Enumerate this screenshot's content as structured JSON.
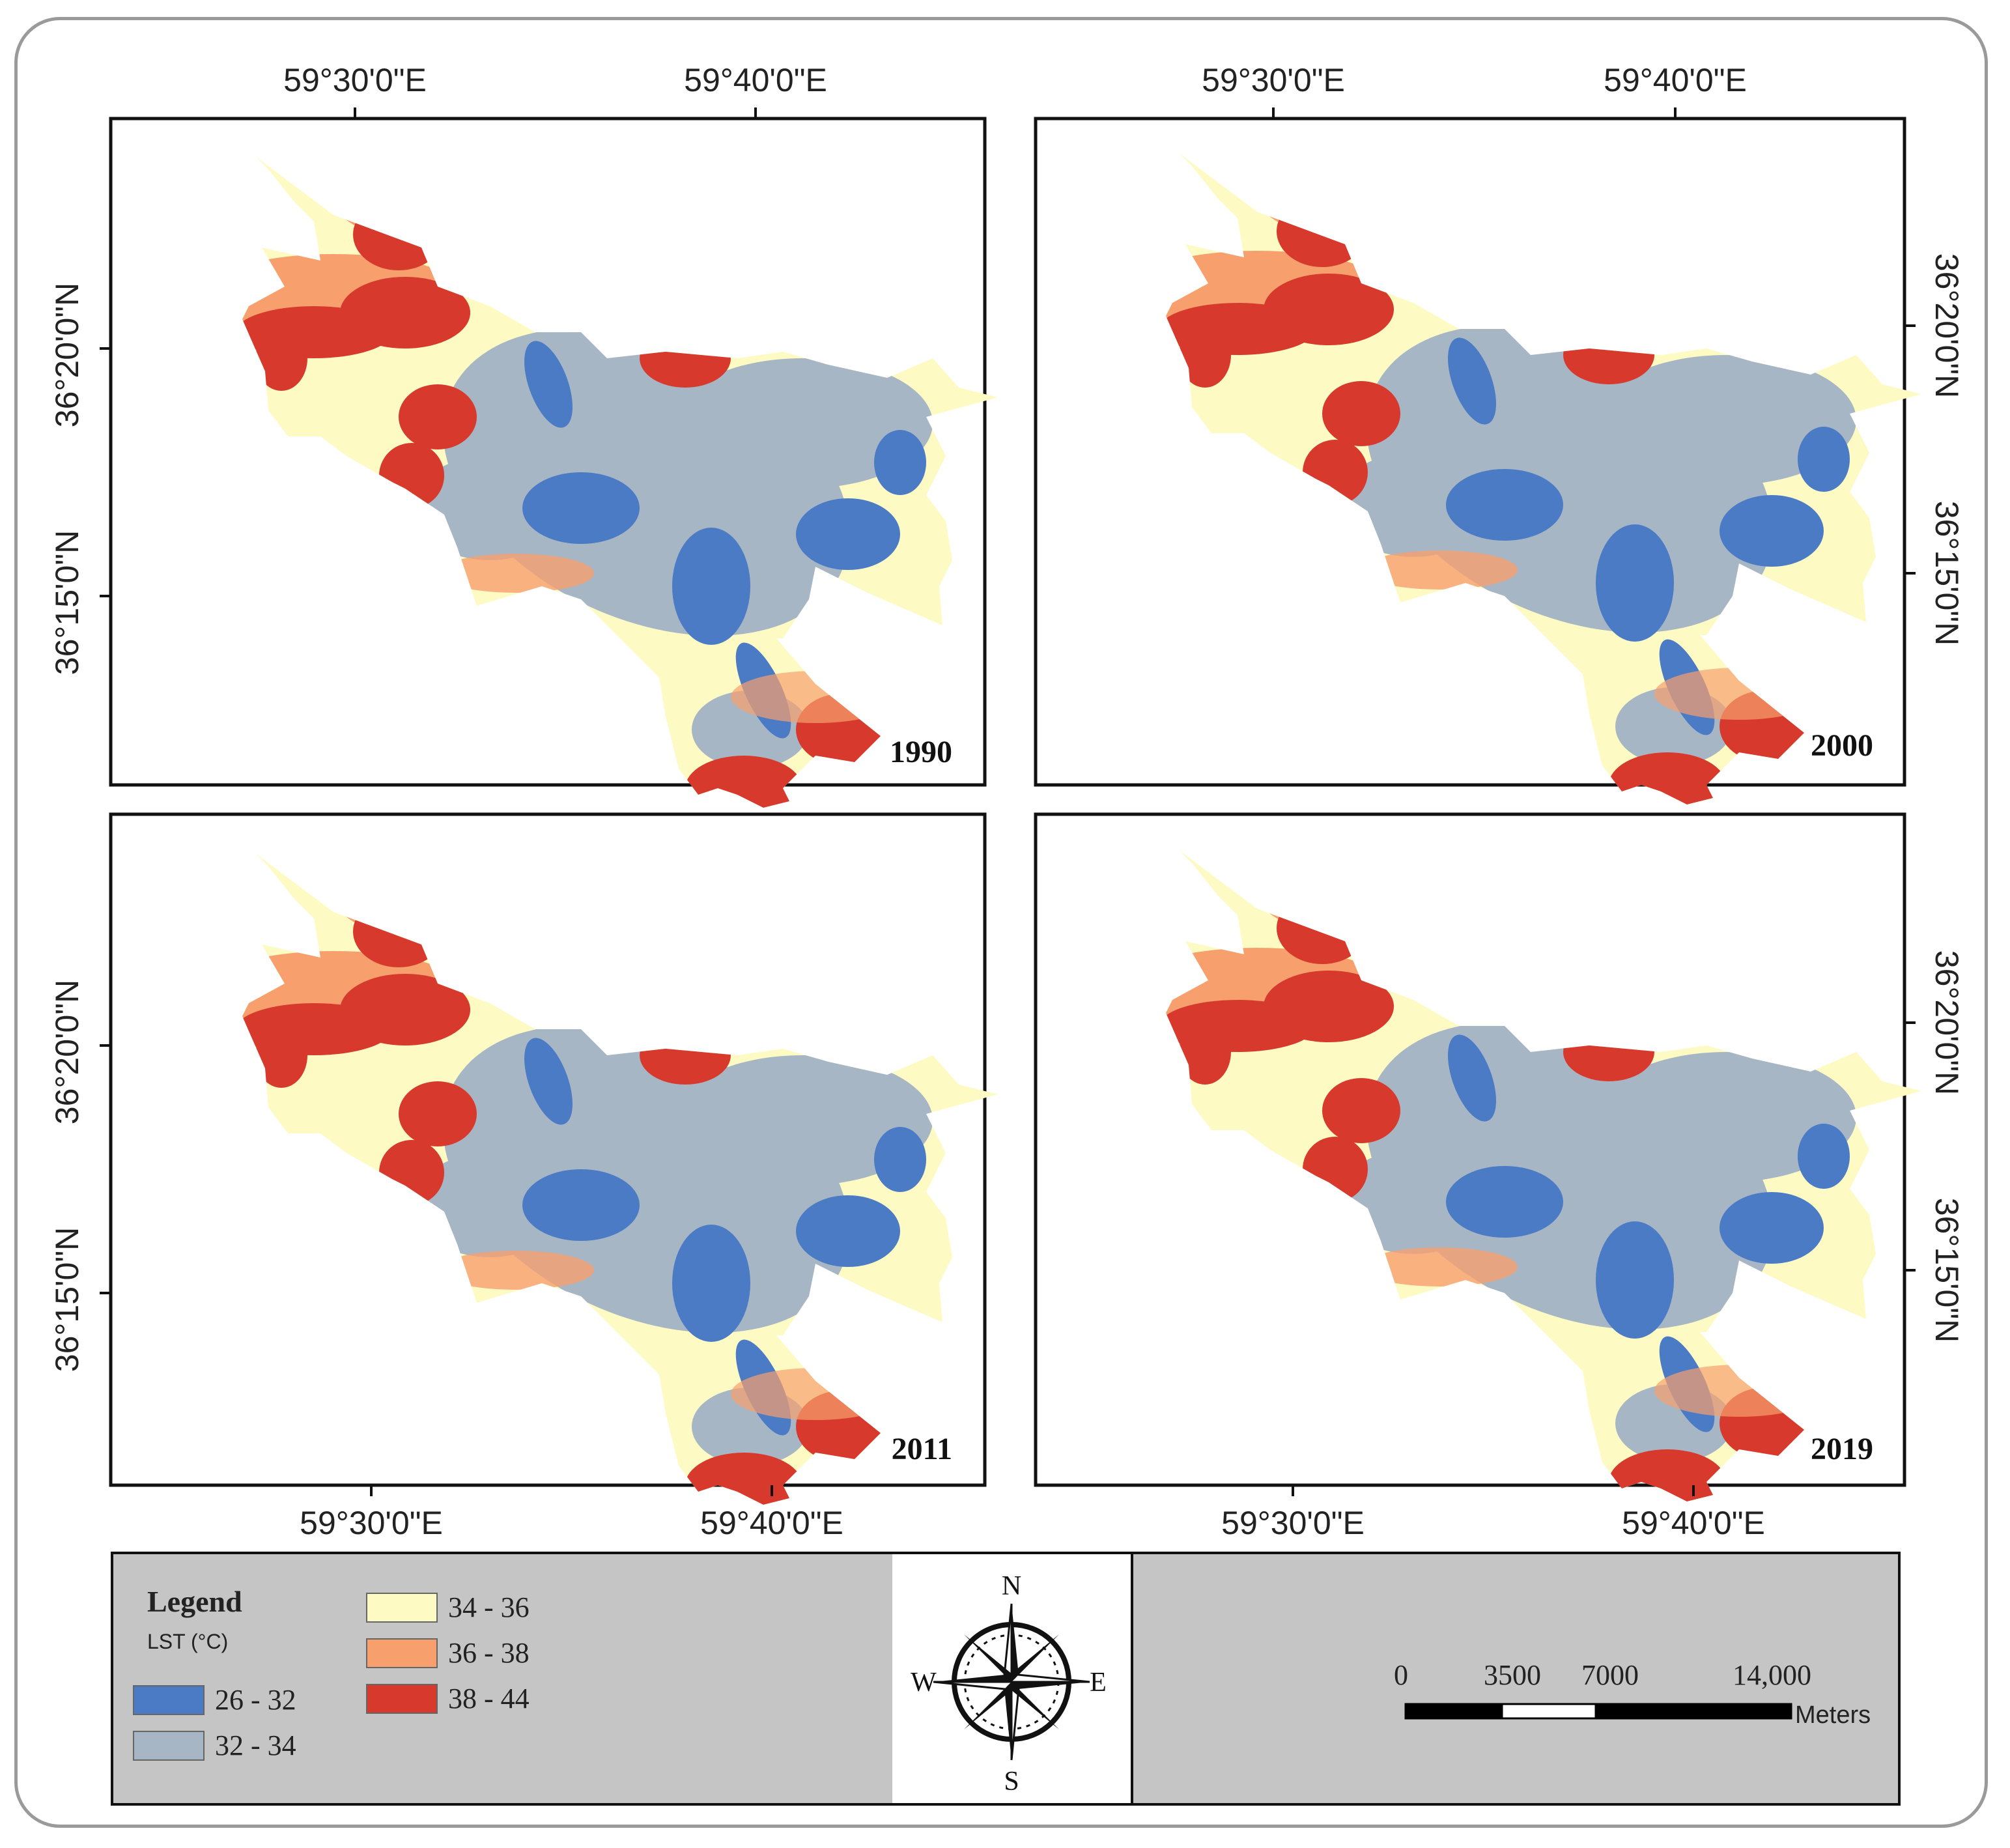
{
  "maps": [
    {
      "year": "1990",
      "top_lon": [
        "59°30'0\"E",
        "59°40'0\"E"
      ],
      "left_lat": [
        "36°20'0\"N",
        "36°15'0\"N"
      ]
    },
    {
      "year": "2000",
      "top_lon": [
        "59°30'0\"E",
        "59°40'0\"E"
      ],
      "right_lat": [
        "36°20'0\"N",
        "36°15'0\"N"
      ]
    },
    {
      "year": "2011",
      "bottom_lon": [
        "59°30'0\"E",
        "59°40'0\"E"
      ],
      "left_lat": [
        "36°20'0\"N",
        "36°15'0\"N"
      ]
    },
    {
      "year": "2019",
      "bottom_lon": [
        "59°30'0\"E",
        "59°40'0\"E"
      ],
      "right_lat": [
        "36°20'0\"N",
        "36°15'0\"N"
      ]
    }
  ],
  "legend": {
    "title": "Legend",
    "unit": "LST (°C)",
    "classes": [
      {
        "label": "26 - 32",
        "color": "#4a7bc4"
      },
      {
        "label": "32 - 34",
        "color": "#a7b6c5"
      },
      {
        "label": "34 - 36",
        "color": "#fdfbc3"
      },
      {
        "label": "36 - 38",
        "color": "#f7a06e"
      },
      {
        "label": "38 - 44",
        "color": "#d73a2c"
      }
    ]
  },
  "compass": {
    "n": "N",
    "s": "S",
    "e": "E",
    "w": "W"
  },
  "scale": {
    "ticks": [
      "0",
      "3500",
      "7000",
      "14,000"
    ],
    "unit": "Meters"
  }
}
